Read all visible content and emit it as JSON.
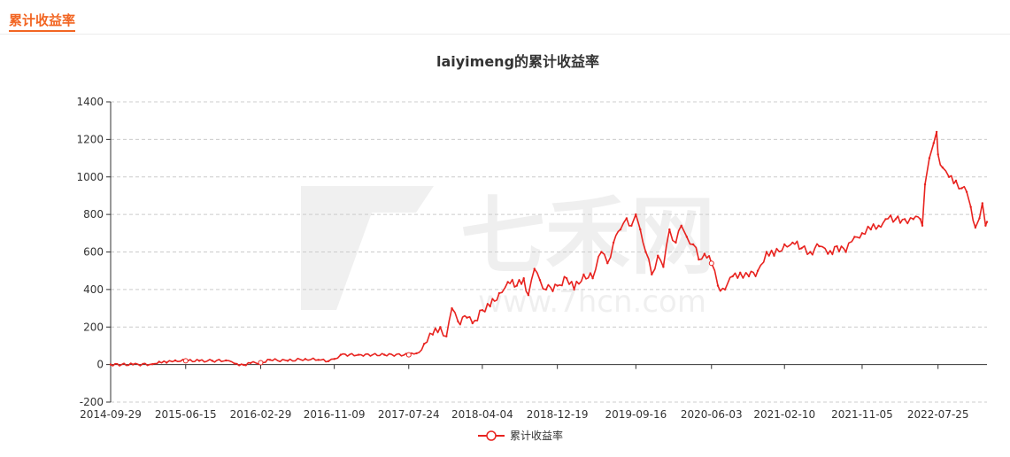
{
  "header": {
    "title": "累计收益率"
  },
  "chart_data": {
    "type": "line",
    "title": "laiyimeng的累计收益率",
    "xlabel": "",
    "ylabel": "",
    "ylim": [
      -200,
      1400
    ],
    "yticks": [
      -200,
      0,
      200,
      400,
      600,
      800,
      1000,
      1200,
      1400
    ],
    "xlim": [
      "2014-09-29",
      "2023-01-10"
    ],
    "xticks": [
      "2014-09-29",
      "2015-06-15",
      "2016-02-29",
      "2016-11-09",
      "2017-07-24",
      "2018-04-04",
      "2018-12-19",
      "2019-09-16",
      "2020-06-03",
      "2021-02-10",
      "2021-11-05",
      "2022-07-25"
    ],
    "grid": true,
    "legend_position": "bottom",
    "color": "#e8231f",
    "watermark": "七禾网 www.7hcn.com",
    "series": [
      {
        "name": "累计收益率",
        "points": [
          [
            "2014-09-29",
            0
          ],
          [
            "2014-12-15",
            0
          ],
          [
            "2015-02-20",
            2
          ],
          [
            "2015-03-15",
            15
          ],
          [
            "2015-04-10",
            10
          ],
          [
            "2015-05-10",
            22
          ],
          [
            "2015-06-15",
            20
          ],
          [
            "2015-08-01",
            20
          ],
          [
            "2015-09-15",
            20
          ],
          [
            "2015-11-01",
            22
          ],
          [
            "2015-12-01",
            5
          ],
          [
            "2016-01-01",
            -2
          ],
          [
            "2016-01-25",
            8
          ],
          [
            "2016-02-29",
            10
          ],
          [
            "2016-04-01",
            25
          ],
          [
            "2016-06-01",
            20
          ],
          [
            "2016-08-01",
            30
          ],
          [
            "2016-09-15",
            25
          ],
          [
            "2016-10-20",
            18
          ],
          [
            "2016-11-09",
            30
          ],
          [
            "2016-12-01",
            52
          ],
          [
            "2017-02-01",
            52
          ],
          [
            "2017-05-01",
            52
          ],
          [
            "2017-07-24",
            52
          ],
          [
            "2017-08-20",
            60
          ],
          [
            "2017-09-15",
            110
          ],
          [
            "2017-10-15",
            160
          ],
          [
            "2017-11-10",
            200
          ],
          [
            "2017-12-01",
            150
          ],
          [
            "2017-12-20",
            300
          ],
          [
            "2018-01-10",
            230
          ],
          [
            "2018-02-10",
            250
          ],
          [
            "2018-03-01",
            220
          ],
          [
            "2018-04-04",
            290
          ],
          [
            "2018-05-01",
            310
          ],
          [
            "2018-06-01",
            380
          ],
          [
            "2018-07-01",
            440
          ],
          [
            "2018-08-01",
            420
          ],
          [
            "2018-08-25",
            460
          ],
          [
            "2018-09-10",
            370
          ],
          [
            "2018-10-01",
            510
          ],
          [
            "2018-10-20",
            450
          ],
          [
            "2018-11-10",
            400
          ],
          [
            "2018-12-19",
            420
          ],
          [
            "2019-01-20",
            460
          ],
          [
            "2019-02-15",
            400
          ],
          [
            "2019-03-20",
            480
          ],
          [
            "2019-04-20",
            460
          ],
          [
            "2019-05-20",
            600
          ],
          [
            "2019-06-10",
            540
          ],
          [
            "2019-07-01",
            650
          ],
          [
            "2019-07-25",
            720
          ],
          [
            "2019-08-15",
            780
          ],
          [
            "2019-09-01",
            740
          ],
          [
            "2019-09-16",
            800
          ],
          [
            "2019-10-01",
            720
          ],
          [
            "2019-10-20",
            600
          ],
          [
            "2019-11-10",
            480
          ],
          [
            "2019-12-01",
            580
          ],
          [
            "2019-12-20",
            520
          ],
          [
            "2020-01-10",
            720
          ],
          [
            "2020-02-01",
            650
          ],
          [
            "2020-02-20",
            740
          ],
          [
            "2020-03-10",
            680
          ],
          [
            "2020-04-01",
            640
          ],
          [
            "2020-04-20",
            560
          ],
          [
            "2020-05-10",
            590
          ],
          [
            "2020-06-03",
            540
          ],
          [
            "2020-06-25",
            420
          ],
          [
            "2020-07-20",
            400
          ],
          [
            "2020-08-15",
            470
          ],
          [
            "2020-09-10",
            490
          ],
          [
            "2020-10-10",
            470
          ],
          [
            "2020-11-10",
            500
          ],
          [
            "2020-12-10",
            600
          ],
          [
            "2021-01-05",
            580
          ],
          [
            "2021-02-10",
            640
          ],
          [
            "2021-03-10",
            650
          ],
          [
            "2021-04-10",
            620
          ],
          [
            "2021-05-10",
            600
          ],
          [
            "2021-06-10",
            630
          ],
          [
            "2021-07-10",
            590
          ],
          [
            "2021-08-10",
            630
          ],
          [
            "2021-09-10",
            600
          ],
          [
            "2021-10-10",
            680
          ],
          [
            "2021-11-05",
            700
          ],
          [
            "2021-12-05",
            720
          ],
          [
            "2022-01-01",
            740
          ],
          [
            "2022-01-25",
            775
          ],
          [
            "2022-03-01",
            775
          ],
          [
            "2022-04-01",
            775
          ],
          [
            "2022-05-01",
            775
          ],
          [
            "2022-05-25",
            775
          ],
          [
            "2022-06-01",
            740
          ],
          [
            "2022-06-10",
            960
          ],
          [
            "2022-06-25",
            1100
          ],
          [
            "2022-07-10",
            1180
          ],
          [
            "2022-07-20",
            1240
          ],
          [
            "2022-07-25",
            1120
          ],
          [
            "2022-08-10",
            1050
          ],
          [
            "2022-09-01",
            1000
          ],
          [
            "2022-09-25",
            980
          ],
          [
            "2022-10-15",
            940
          ],
          [
            "2022-11-01",
            920
          ],
          [
            "2022-11-15",
            840
          ],
          [
            "2022-12-01",
            730
          ],
          [
            "2022-12-15",
            780
          ],
          [
            "2022-12-25",
            860
          ],
          [
            "2023-01-05",
            740
          ],
          [
            "2023-01-10",
            760
          ]
        ]
      }
    ]
  }
}
